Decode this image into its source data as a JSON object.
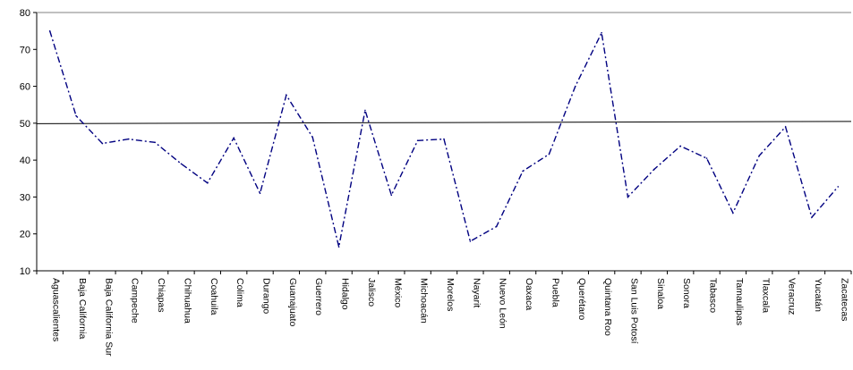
{
  "chart_data": {
    "type": "line",
    "title": "",
    "xlabel": "",
    "ylabel": "",
    "ylim": [
      10,
      80
    ],
    "yticks": [
      10,
      20,
      30,
      40,
      50,
      60,
      70,
      80
    ],
    "grid": false,
    "reference_line": 50,
    "categories": [
      "Aguascalientes",
      "Baja California",
      "Baja California Sur",
      "Campeche",
      "Chiapas",
      "Chihuahua",
      "Coahuila",
      "Colima",
      "Durango",
      "Guanajuato",
      "Guerrero",
      "Hidalgo",
      "Jalisco",
      "México",
      "Michoacán",
      "Morelos",
      "Nayarit",
      "Nuevo León",
      "Oaxaca",
      "Puebla",
      "Querétaro",
      "Quintana Roo",
      "San Luis Potosí",
      "Sinaloa",
      "Sonora",
      "Tabasco",
      "Tamaulipas",
      "Tlaxcala",
      "Veracruz",
      "Yucatán",
      "Zacatecas"
    ],
    "series": [
      {
        "values": [
          75,
          52,
          44.5,
          45.7,
          44.8,
          39,
          33.8,
          46,
          31,
          57.6,
          46.2,
          16.5,
          53.5,
          30.5,
          45.3,
          45.7,
          18,
          22,
          37,
          41.6,
          60,
          74.5,
          30,
          37.5,
          43.8,
          40.5,
          25.7,
          41.2,
          49,
          24.5,
          32.8
        ],
        "color": "#000080"
      }
    ]
  }
}
